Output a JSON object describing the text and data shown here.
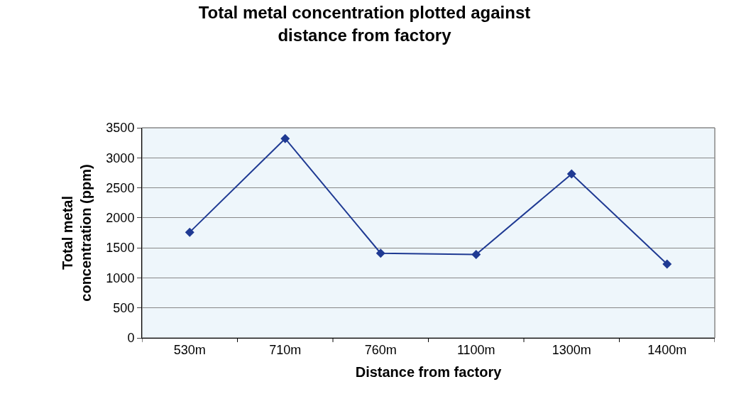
{
  "chart_data": {
    "type": "line",
    "title": "Total metal concentration plotted against\ndistance from factory",
    "xlabel": "Distance from factory",
    "ylabel": "Total metal\nconcentration (ppm)",
    "categories": [
      "530m",
      "710m",
      "760m",
      "1100m",
      "1300m",
      "1400m"
    ],
    "series": [
      {
        "color": "#1f3a93",
        "values": [
          1760,
          3320,
          1410,
          1390,
          2730,
          1230
        ]
      }
    ],
    "ylim": [
      0,
      3500
    ],
    "yticks": [
      0,
      500,
      1000,
      1500,
      2000,
      2500,
      3000,
      3500
    ],
    "grid": "y",
    "marker": "diamond",
    "line_style": "solid"
  }
}
